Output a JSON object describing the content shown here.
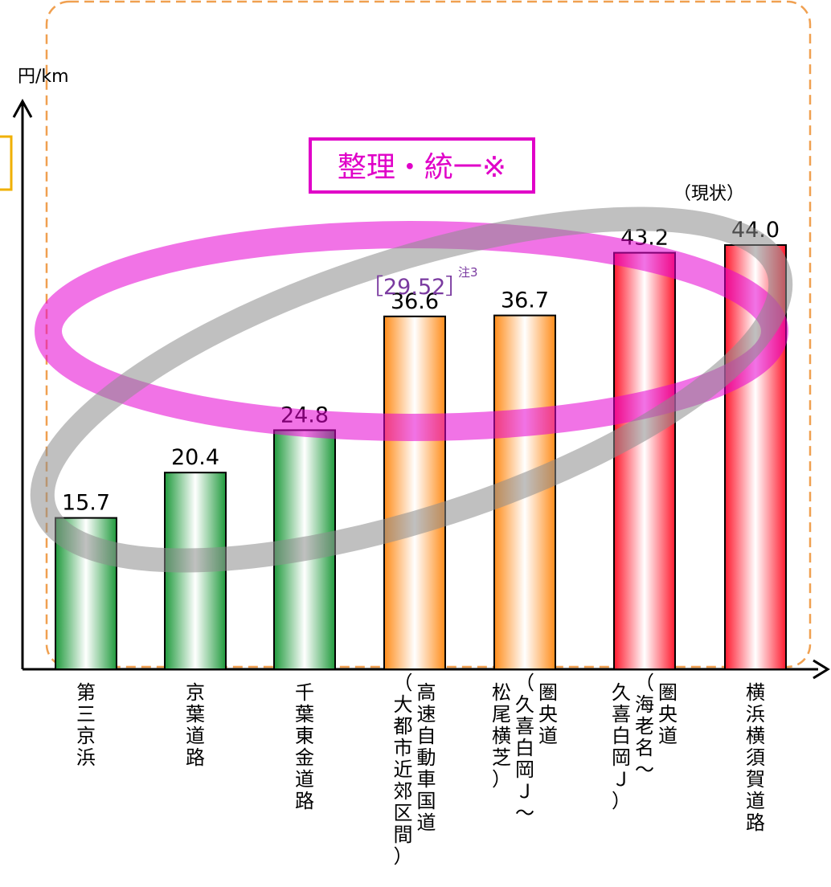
{
  "chart_data": {
    "type": "bar",
    "ylabel": "円/km",
    "categories": [
      {
        "lines": [
          "第三京浜"
        ]
      },
      {
        "lines": [
          "京葉道路"
        ]
      },
      {
        "lines": [
          "千葉東金道路"
        ]
      },
      {
        "lines": [
          "高速自動車国道",
          "（大都市近郊区間）"
        ]
      },
      {
        "lines": [
          "圏央道",
          "（久喜白岡Ｊ～",
          "松尾横芝）"
        ]
      },
      {
        "lines": [
          "圏央道",
          "（海老名～",
          "久喜白岡Ｊ）"
        ]
      },
      {
        "lines": [
          "横浜横須賀道路"
        ]
      }
    ],
    "values": [
      15.7,
      20.4,
      24.8,
      36.6,
      36.7,
      43.2,
      44.0
    ],
    "value_labels": [
      "15.7",
      "20.4",
      "24.8",
      "36.6",
      "36.7",
      "43.2",
      "44.0"
    ],
    "bar_colors": [
      "#1f9a3c",
      "#1f9a3c",
      "#1f9a3c",
      "#ff8c1a",
      "#ff8c1a",
      "#ff1a2e",
      "#ff1a2e"
    ],
    "ylim": [
      0,
      50
    ],
    "grid": false,
    "annotations": {
      "banner": "整理・統一※",
      "status": "（現状）",
      "target_value": "［29.52］",
      "target_note": "注3"
    },
    "colors": {
      "magenta_ellipse": "#e600d2",
      "gray_ellipse": "#8c8c8c",
      "dashed_frame": "#f0a050"
    }
  }
}
